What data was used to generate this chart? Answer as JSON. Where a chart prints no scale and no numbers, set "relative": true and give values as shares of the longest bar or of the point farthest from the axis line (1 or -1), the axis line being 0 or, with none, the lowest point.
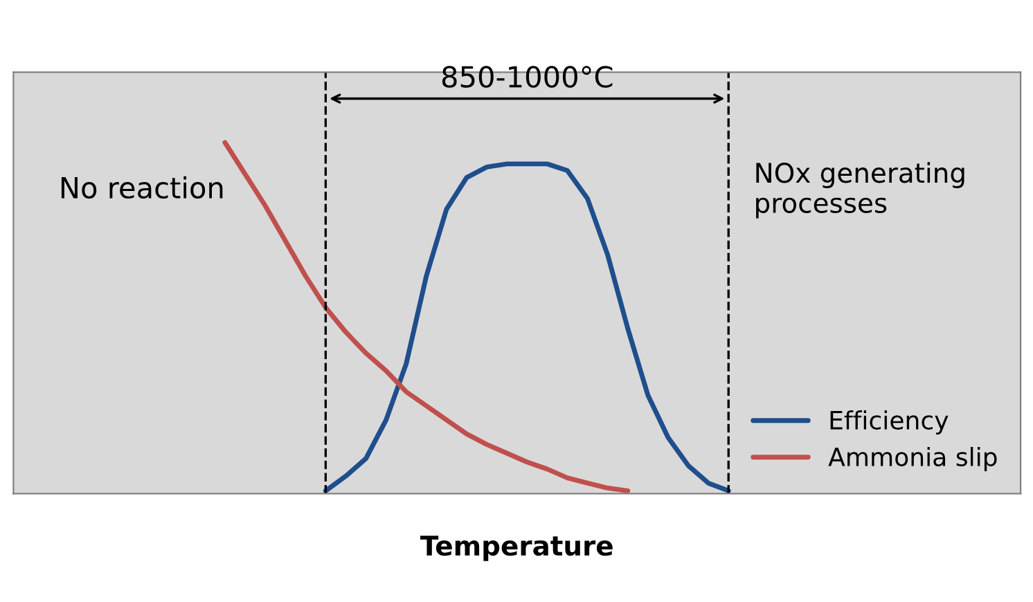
{
  "chart_data": {
    "type": "line",
    "relative": true,
    "xlabel": "Temperature",
    "categories": [
      null,
      null,
      null,
      null,
      null,
      null,
      null,
      null,
      null,
      null,
      null,
      null,
      null,
      null,
      null,
      null,
      null,
      null,
      null,
      null,
      null,
      null,
      null,
      null,
      null,
      null,
      null,
      null,
      null,
      null,
      null,
      null,
      null,
      null,
      null,
      null,
      null,
      null,
      null,
      null,
      null,
      null,
      null,
      null,
      null,
      null,
      null,
      null,
      null,
      null
    ],
    "legend": "bottom right",
    "line_style": "solid",
    "marker": "none",
    "annotations": [
      "850-1000°C",
      "No reaction",
      "NOx generating processes"
    ],
    "series": [
      {
        "name": "Efficiency",
        "color": "#1f4e8c",
        "values": [
          null,
          null,
          null,
          null,
          null,
          null,
          null,
          null,
          null,
          null,
          null,
          null,
          null,
          null,
          null,
          0.008,
          0.05,
          0.1,
          0.21,
          0.37,
          0.62,
          0.81,
          0.9,
          0.93,
          0.939,
          0.939,
          0.939,
          0.92,
          0.84,
          0.68,
          0.47,
          0.28,
          0.16,
          0.08,
          0.03,
          0.008,
          null,
          null,
          null,
          null,
          null,
          null,
          null,
          null,
          null,
          null,
          null,
          null,
          null,
          null
        ]
      },
      {
        "name": "Ammonia slip",
        "color": "#c0504d",
        "values": [
          null,
          null,
          null,
          null,
          null,
          null,
          null,
          null,
          null,
          null,
          1.0,
          0.91,
          0.82,
          0.72,
          0.62,
          0.53,
          0.46,
          0.4,
          0.35,
          0.29,
          0.25,
          0.21,
          0.17,
          0.14,
          0.115,
          0.09,
          0.07,
          0.045,
          0.03,
          0.016,
          0.008,
          null,
          null,
          null,
          null,
          null,
          null,
          null,
          null,
          null,
          null,
          null,
          null,
          null,
          null,
          null,
          null,
          null,
          null,
          null
        ]
      }
    ]
  }
}
